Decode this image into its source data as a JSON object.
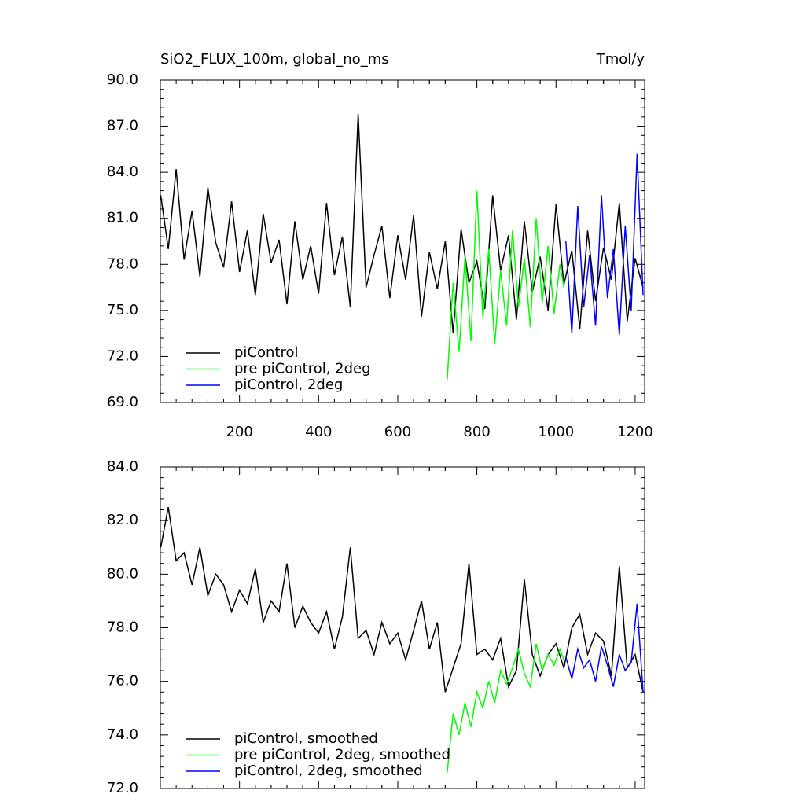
{
  "chart_data": [
    {
      "type": "line",
      "title": "SiO2_FLUX_100m, global_no_ms",
      "units_label": "Tmol/y",
      "xlim": [
        0,
        1224
      ],
      "xticks": [
        200,
        400,
        600,
        800,
        1000,
        1200
      ],
      "xtick_labels": true,
      "ylim": [
        69,
        90
      ],
      "yticks": [
        {
          "value": 69,
          "label": "69.0"
        },
        {
          "value": 72,
          "label": "72.0"
        },
        {
          "value": 75,
          "label": "75.0"
        },
        {
          "value": 78,
          "label": "78.0"
        },
        {
          "value": 81,
          "label": "81.0"
        },
        {
          "value": 84,
          "label": "84.0"
        },
        {
          "value": 87,
          "label": "87.0"
        },
        {
          "value": 90,
          "label": "90.0"
        }
      ],
      "legend": "lower left",
      "series": [
        {
          "name": "piControl",
          "color": "#000000",
          "x": [
            1,
            20,
            40,
            60,
            80,
            100,
            120,
            140,
            160,
            180,
            200,
            220,
            240,
            260,
            280,
            300,
            320,
            340,
            360,
            380,
            400,
            420,
            440,
            460,
            480,
            500,
            520,
            540,
            560,
            580,
            600,
            620,
            640,
            660,
            680,
            700,
            720,
            740,
            760,
            780,
            800,
            820,
            840,
            860,
            880,
            900,
            920,
            940,
            960,
            980,
            1000,
            1020,
            1040,
            1060,
            1080,
            1100,
            1120,
            1140,
            1160,
            1180,
            1200,
            1220
          ],
          "values": [
            82.5,
            79.0,
            84.2,
            78.3,
            81.5,
            77.2,
            83.0,
            79.4,
            77.8,
            82.1,
            77.5,
            80.2,
            76.0,
            81.3,
            78.1,
            79.6,
            75.4,
            80.8,
            77.0,
            79.2,
            76.1,
            82.0,
            77.3,
            79.8,
            75.2,
            87.8,
            76.5,
            78.6,
            80.5,
            75.8,
            79.9,
            77.0,
            81.2,
            74.6,
            78.8,
            76.4,
            79.5,
            73.5,
            80.3,
            76.8,
            78.2,
            75.1,
            82.5,
            77.6,
            79.9,
            74.4,
            80.8,
            76.2,
            78.5,
            75.0,
            81.9,
            76.7,
            78.9,
            73.8,
            80.2,
            75.6,
            79.1,
            77.0,
            82.0,
            74.3,
            78.4,
            76.5
          ]
        },
        {
          "name": "pre piControl, 2deg",
          "color": "#00ff00",
          "x": [
            725,
            740,
            755,
            770,
            785,
            800,
            815,
            830,
            845,
            860,
            875,
            890,
            905,
            920,
            935,
            950,
            965,
            980,
            995,
            1010,
            1020
          ],
          "values": [
            70.5,
            76.8,
            72.3,
            78.5,
            73.0,
            82.8,
            74.5,
            79.0,
            72.8,
            77.6,
            74.0,
            80.2,
            75.2,
            78.4,
            73.9,
            81.0,
            75.5,
            79.2,
            74.8,
            78.0,
            76.5
          ]
        },
        {
          "name": "piControl, 2deg",
          "color": "#0000ff",
          "x": [
            1025,
            1040,
            1055,
            1070,
            1085,
            1100,
            1115,
            1130,
            1145,
            1160,
            1175,
            1190,
            1205,
            1220
          ],
          "values": [
            79.5,
            73.5,
            81.8,
            75.2,
            78.6,
            74.0,
            82.5,
            75.8,
            79.0,
            73.4,
            80.5,
            75.0,
            85.2,
            76.0
          ]
        }
      ]
    },
    {
      "type": "line",
      "xlim": [
        0,
        1224
      ],
      "xticks": [
        200,
        400,
        600,
        800,
        1000,
        1200
      ],
      "xtick_labels": false,
      "ylim": [
        72,
        84
      ],
      "yticks": [
        {
          "value": 72,
          "label": "72.0"
        },
        {
          "value": 74,
          "label": "74.0"
        },
        {
          "value": 76,
          "label": "76.0"
        },
        {
          "value": 78,
          "label": "78.0"
        },
        {
          "value": 80,
          "label": "80.0"
        },
        {
          "value": 82,
          "label": "82.0"
        },
        {
          "value": 84,
          "label": "84.0"
        }
      ],
      "legend": "lower left",
      "series": [
        {
          "name": "piControl, smoothed",
          "color": "#000000",
          "x": [
            1,
            20,
            40,
            60,
            80,
            100,
            120,
            140,
            160,
            180,
            200,
            220,
            240,
            260,
            280,
            300,
            320,
            340,
            360,
            380,
            400,
            420,
            440,
            460,
            480,
            500,
            520,
            540,
            560,
            580,
            600,
            620,
            640,
            660,
            680,
            700,
            720,
            740,
            760,
            780,
            800,
            820,
            840,
            860,
            880,
            900,
            920,
            940,
            960,
            980,
            1000,
            1020,
            1040,
            1060,
            1080,
            1100,
            1120,
            1140,
            1160,
            1180,
            1200,
            1220
          ],
          "values": [
            81.0,
            82.5,
            80.5,
            80.8,
            79.6,
            81.0,
            79.2,
            80.0,
            79.6,
            78.6,
            79.4,
            78.9,
            80.2,
            78.2,
            79.0,
            78.6,
            80.4,
            78.0,
            78.8,
            78.2,
            77.8,
            78.6,
            77.2,
            78.4,
            81.0,
            77.6,
            77.9,
            77.0,
            78.2,
            77.4,
            77.8,
            76.8,
            77.9,
            79.0,
            77.2,
            78.2,
            75.6,
            76.5,
            77.4,
            80.4,
            77.0,
            77.2,
            76.8,
            77.6,
            75.8,
            76.4,
            79.8,
            77.0,
            76.2,
            77.0,
            77.4,
            76.5,
            78.0,
            78.5,
            77.0,
            77.8,
            77.5,
            76.2,
            80.3,
            76.5,
            77.0,
            75.6
          ]
        },
        {
          "name": "pre piControl, 2deg, smoothed",
          "color": "#00ff00",
          "x": [
            725,
            740,
            755,
            770,
            785,
            800,
            815,
            830,
            845,
            860,
            875,
            890,
            905,
            920,
            935,
            950,
            965,
            980,
            995,
            1010,
            1020
          ],
          "values": [
            72.6,
            74.8,
            74.0,
            75.2,
            74.3,
            75.6,
            75.0,
            76.0,
            75.2,
            76.4,
            75.9,
            76.5,
            77.2,
            76.3,
            75.8,
            77.4,
            76.4,
            77.0,
            76.6,
            77.2,
            76.8
          ]
        },
        {
          "name": "piControl, 2deg, smoothed",
          "color": "#0000ff",
          "x": [
            1025,
            1040,
            1055,
            1070,
            1085,
            1100,
            1115,
            1130,
            1145,
            1160,
            1175,
            1190,
            1205,
            1220
          ],
          "values": [
            76.9,
            76.1,
            77.2,
            76.5,
            76.8,
            76.0,
            77.3,
            76.6,
            75.8,
            77.0,
            76.4,
            76.7,
            78.9,
            75.6
          ]
        }
      ]
    }
  ]
}
